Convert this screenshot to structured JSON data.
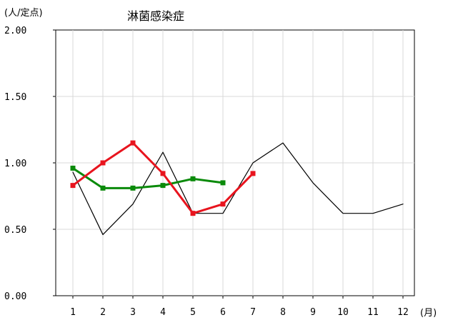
{
  "chart_data": {
    "type": "line",
    "title": "淋菌感染症",
    "ylabel": "(人/定点)",
    "xlabel": "(月)",
    "ylim": [
      0,
      2
    ],
    "yticks": [
      "0.00",
      "0.50",
      "1.00",
      "1.50",
      "2.00"
    ],
    "xticks": [
      "1",
      "2",
      "3",
      "4",
      "5",
      "6",
      "7",
      "8",
      "9",
      "10",
      "11",
      "12"
    ],
    "grid": true,
    "series": [
      {
        "color": "#000000",
        "x": [
          1,
          2,
          3,
          4,
          5,
          6,
          7,
          8,
          9,
          10,
          11,
          12
        ],
        "values": [
          0.93,
          0.46,
          0.69,
          1.08,
          0.62,
          0.62,
          1.0,
          1.15,
          0.85,
          0.62,
          0.62,
          0.69
        ]
      },
      {
        "color": "#0a8a0a",
        "x": [
          1,
          2,
          3,
          4,
          5,
          6
        ],
        "values": [
          0.96,
          0.81,
          0.81,
          0.83,
          0.88,
          0.85
        ]
      },
      {
        "color": "#e8141e",
        "x": [
          1,
          2,
          3,
          4,
          5,
          6,
          7
        ],
        "values": [
          0.83,
          1.0,
          1.15,
          0.92,
          0.62,
          0.69,
          0.92
        ]
      }
    ]
  }
}
